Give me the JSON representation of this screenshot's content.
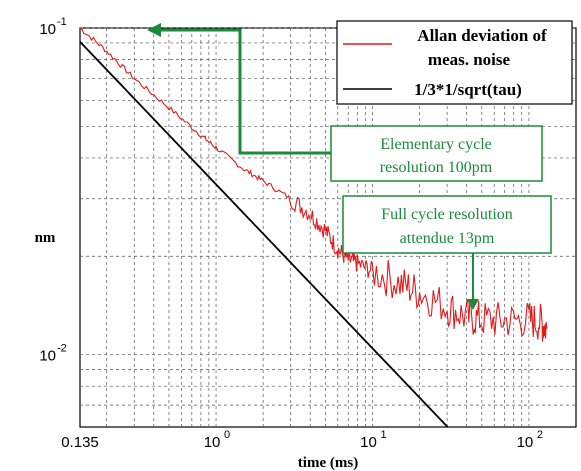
{
  "chart_data": {
    "type": "line",
    "xscale": "log",
    "yscale": "log",
    "xlim": [
      0.135,
      200
    ],
    "ylim": [
      0.006,
      0.1
    ],
    "xlabel": "time (ms)",
    "ylabel": "nm",
    "grid": true,
    "x_ticks": [
      {
        "value": 0.135,
        "base": "0.135",
        "exp": ""
      },
      {
        "value": 1,
        "base": "10",
        "exp": "0"
      },
      {
        "value": 10,
        "base": "10",
        "exp": "1"
      },
      {
        "value": 100,
        "base": "10",
        "exp": "2"
      }
    ],
    "y_ticks": [
      {
        "value": 0.1,
        "base": "10",
        "exp": "-1"
      },
      {
        "value": 0.01,
        "base": "10",
        "exp": "-2"
      }
    ],
    "legend": {
      "position": "top-right",
      "entries": [
        {
          "label_lines": [
            "Allan deviation of",
            "meas. noise"
          ],
          "color": "#e31a1c"
        },
        {
          "label_lines": [
            "1/3*1/sqrt(tau)"
          ],
          "color": "#000000"
        }
      ]
    },
    "series": [
      {
        "name": "Allan deviation of meas. noise",
        "color": "#e31a1c",
        "points": [
          [
            0.135,
            0.1
          ],
          [
            0.2,
            0.085
          ],
          [
            0.3,
            0.07
          ],
          [
            0.5,
            0.057
          ],
          [
            0.8,
            0.047
          ],
          [
            1.0,
            0.043
          ],
          [
            1.5,
            0.037
          ],
          [
            2.0,
            0.034
          ],
          [
            3.0,
            0.03
          ],
          [
            4.0,
            0.027
          ],
          [
            5.0,
            0.024
          ],
          [
            6.0,
            0.021
          ],
          [
            7.0,
            0.0195
          ],
          [
            8.0,
            0.019
          ],
          [
            10.0,
            0.018
          ],
          [
            15.0,
            0.0165
          ],
          [
            20.0,
            0.0155
          ],
          [
            30.0,
            0.014
          ],
          [
            40.0,
            0.013
          ],
          [
            50.0,
            0.0128
          ],
          [
            70.0,
            0.0127
          ],
          [
            100.0,
            0.0128
          ],
          [
            120.0,
            0.0125
          ],
          [
            130.0,
            0.012
          ]
        ]
      },
      {
        "name": "1/3*1/sqrt(tau)",
        "color": "#000000",
        "points": [
          [
            0.135,
            0.0907
          ],
          [
            30.2,
            0.006
          ]
        ]
      }
    ],
    "annotations": [
      {
        "lines": [
          "Elementary cycle",
          "resolution 100pm"
        ],
        "color": "#1b8a3a"
      },
      {
        "lines": [
          "Full cycle resolution",
          "attendue 13pm"
        ],
        "color": "#1b8a3a"
      }
    ]
  }
}
